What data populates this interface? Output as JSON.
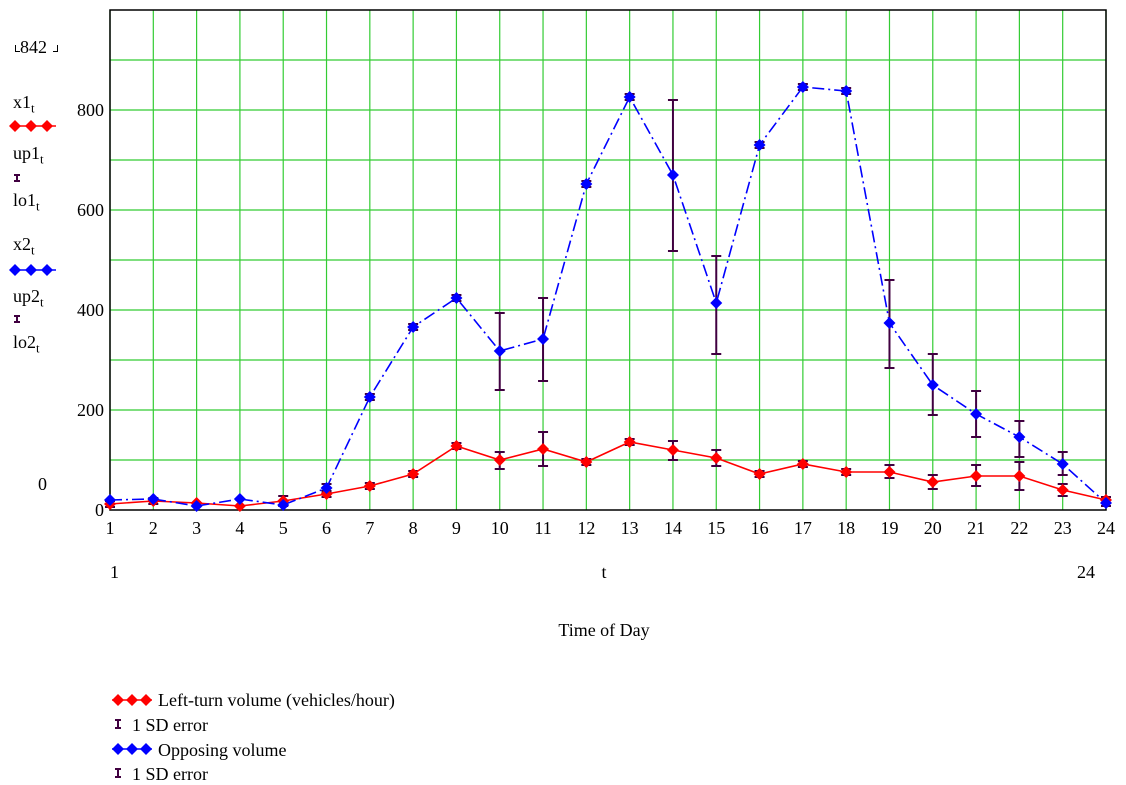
{
  "chart_data": {
    "type": "line",
    "xlabel": "Time of Day",
    "x_var": "t",
    "x_range": [
      "1",
      "24"
    ],
    "y_range_top": "842",
    "y_range_bottom": "0",
    "xlim": [
      1,
      24
    ],
    "ylim": [
      0,
      1000
    ],
    "x_ticks": [
      1,
      2,
      3,
      4,
      5,
      6,
      7,
      8,
      9,
      10,
      11,
      12,
      13,
      14,
      15,
      16,
      17,
      18,
      19,
      20,
      21,
      22,
      23,
      24
    ],
    "y_ticks": [
      0,
      200,
      400,
      600,
      800
    ],
    "grid": true,
    "grid_color": "#33cc33",
    "x": [
      1,
      2,
      3,
      4,
      5,
      6,
      7,
      8,
      9,
      10,
      11,
      12,
      13,
      14,
      15,
      16,
      17,
      18,
      19,
      20,
      21,
      22,
      23,
      24
    ],
    "series": [
      {
        "name": "Left-turn volume (vehicles/hour)",
        "var": "x1",
        "color": "#ff0000",
        "line_style": "solid",
        "values": [
          12,
          18,
          14,
          8,
          18,
          32,
          48,
          72,
          128,
          100,
          122,
          96,
          136,
          120,
          104,
          72,
          92,
          76,
          76,
          56,
          68,
          68,
          40,
          20
        ],
        "error_label": "1 SD error",
        "upper": [
          18,
          24,
          18,
          12,
          28,
          38,
          54,
          78,
          134,
          116,
          156,
          102,
          142,
          138,
          120,
          78,
          98,
          82,
          90,
          70,
          90,
          96,
          52,
          26
        ],
        "lower": [
          6,
          12,
          10,
          4,
          8,
          26,
          42,
          66,
          122,
          82,
          88,
          90,
          130,
          100,
          88,
          66,
          86,
          70,
          64,
          42,
          48,
          40,
          28,
          14
        ]
      },
      {
        "name": "Opposing volume",
        "var": "x2",
        "color": "#0000ff",
        "line_style": "dashdot",
        "values": [
          20,
          22,
          8,
          22,
          10,
          44,
          226,
          366,
          424,
          318,
          342,
          652,
          826,
          670,
          414,
          730,
          846,
          838,
          374,
          250,
          192,
          146,
          92,
          14
        ],
        "error_label": "1 SD error",
        "upper": [
          24,
          26,
          12,
          26,
          14,
          52,
          232,
          372,
          430,
          394,
          424,
          658,
          832,
          820,
          508,
          736,
          852,
          844,
          460,
          312,
          238,
          178,
          116,
          20
        ],
        "lower": [
          16,
          18,
          4,
          18,
          6,
          36,
          220,
          360,
          418,
          240,
          258,
          646,
          820,
          518,
          312,
          724,
          840,
          832,
          284,
          190,
          146,
          106,
          70,
          8
        ]
      }
    ],
    "error_bar_color": "#400040",
    "legend": [
      {
        "symbol": "line",
        "label": "Left-turn volume (vehicles/hour)",
        "color": "#ff0000"
      },
      {
        "symbol": "errorbar",
        "label": "1 SD error",
        "color": "#400040"
      },
      {
        "symbol": "line",
        "label": "Opposing volume",
        "color": "#0000ff"
      },
      {
        "symbol": "errorbar",
        "label": "1 SD error",
        "color": "#400040"
      }
    ],
    "trace_labels": [
      {
        "base": "x1",
        "sub": "t",
        "symbol": "line",
        "color": "#ff0000"
      },
      {
        "base": "up1",
        "sub": "t",
        "symbol": "errorbar",
        "color": "#400040"
      },
      {
        "base": "lo1",
        "sub": "t",
        "symbol": "none",
        "color": "#400040"
      },
      {
        "base": "x2",
        "sub": "t",
        "symbol": "line",
        "color": "#0000ff"
      },
      {
        "base": "up2",
        "sub": "t",
        "symbol": "errorbar",
        "color": "#400040"
      },
      {
        "base": "lo2",
        "sub": "t",
        "symbol": "none",
        "color": "#400040"
      }
    ]
  }
}
